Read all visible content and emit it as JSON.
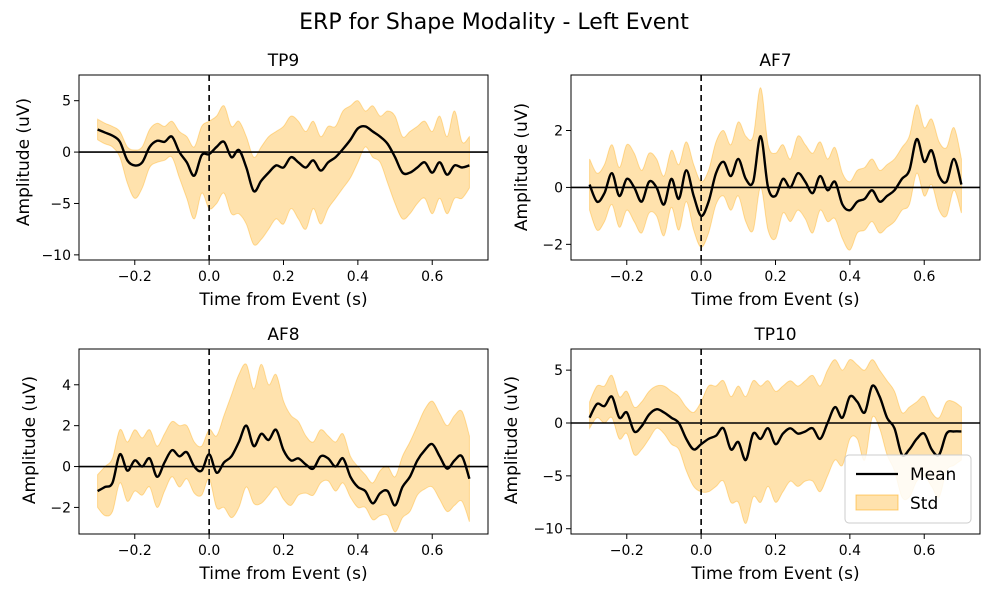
{
  "figure": {
    "title": "ERP for Shape Modality - Left Event",
    "colors": {
      "mean": "#000000",
      "std_fill": "#ffa500",
      "std_alpha": 0.32
    },
    "legend": {
      "placement": "lower-right",
      "panel": "TP10",
      "entries": [
        "Mean",
        "Std"
      ]
    }
  },
  "chart_data": [
    {
      "type": "line",
      "title": "TP9",
      "xlabel": "Time from Event (s)",
      "ylabel": "Amplitude (uV)",
      "xlim": [
        -0.35,
        0.75
      ],
      "ylim": [
        -10.5,
        7.5
      ],
      "xticks": [
        -0.2,
        0.0,
        0.2,
        0.4,
        0.6
      ],
      "xtick_labels": [
        "−0.2",
        "0.0",
        "0.2",
        "0.4",
        "0.6"
      ],
      "yticks": [
        -10,
        -5,
        0,
        5
      ],
      "ytick_labels": [
        "−10",
        "−5",
        "0",
        "5"
      ],
      "event_line_x": 0,
      "baseline_y": 0,
      "x": [
        -0.3,
        -0.28,
        -0.26,
        -0.24,
        -0.22,
        -0.2,
        -0.18,
        -0.16,
        -0.14,
        -0.12,
        -0.1,
        -0.08,
        -0.06,
        -0.04,
        -0.02,
        0.0,
        0.02,
        0.04,
        0.06,
        0.08,
        0.1,
        0.12,
        0.14,
        0.16,
        0.18,
        0.2,
        0.22,
        0.24,
        0.26,
        0.28,
        0.3,
        0.32,
        0.34,
        0.36,
        0.38,
        0.4,
        0.42,
        0.44,
        0.46,
        0.48,
        0.5,
        0.52,
        0.54,
        0.56,
        0.58,
        0.6,
        0.62,
        0.64,
        0.66,
        0.68,
        0.7
      ],
      "series": [
        {
          "name": "Mean",
          "values": [
            2.2,
            1.9,
            1.6,
            1.0,
            -0.8,
            -1.3,
            -1.0,
            0.5,
            1.1,
            1.0,
            1.5,
            0.0,
            -1.0,
            -2.3,
            -0.3,
            -0.2,
            0.5,
            1.0,
            -0.5,
            0.2,
            -1.5,
            -3.8,
            -2.8,
            -2.0,
            -1.3,
            -1.5,
            -0.5,
            -1.0,
            -1.5,
            -0.8,
            -1.8,
            -1.0,
            -0.5,
            0.3,
            1.2,
            2.3,
            2.5,
            2.0,
            1.5,
            0.8,
            -0.5,
            -2.0,
            -2.0,
            -1.5,
            -1.0,
            -2.0,
            -1.0,
            -2.2,
            -1.3,
            -1.5,
            -1.3
          ]
        },
        {
          "name": "Std",
          "upper": [
            3.2,
            2.8,
            2.5,
            2.0,
            0.5,
            0.2,
            0.5,
            2.2,
            2.8,
            2.5,
            3.0,
            2.0,
            1.5,
            0.5,
            2.5,
            3.0,
            3.5,
            4.5,
            2.5,
            3.0,
            1.5,
            -0.5,
            0.5,
            1.5,
            2.0,
            2.5,
            3.5,
            3.0,
            2.0,
            3.0,
            1.5,
            2.5,
            2.5,
            4.0,
            4.5,
            5.0,
            4.0,
            4.5,
            3.5,
            4.0,
            3.5,
            1.5,
            2.0,
            2.5,
            3.0,
            2.0,
            3.5,
            1.5,
            4.0,
            1.0,
            1.5
          ],
          "lower": [
            1.2,
            0.8,
            0.5,
            -0.5,
            -3.0,
            -4.5,
            -3.5,
            -1.5,
            -1.0,
            -0.8,
            -0.5,
            -2.5,
            -4.5,
            -6.5,
            -4.0,
            -5.5,
            -5.0,
            -4.0,
            -6.0,
            -6.0,
            -7.0,
            -9.0,
            -8.5,
            -7.5,
            -6.5,
            -7.0,
            -5.5,
            -6.5,
            -7.5,
            -5.5,
            -7.0,
            -5.5,
            -4.5,
            -3.5,
            -2.5,
            -1.0,
            0.5,
            -0.5,
            -1.0,
            -3.0,
            -5.0,
            -6.5,
            -6.0,
            -5.0,
            -4.5,
            -6.0,
            -4.5,
            -6.0,
            -4.5,
            -4.5,
            -3.5
          ]
        }
      ]
    },
    {
      "type": "line",
      "title": "AF7",
      "xlabel": "Time from Event (s)",
      "ylabel": "Amplitude (uV)",
      "xlim": [
        -0.35,
        0.75
      ],
      "ylim": [
        -2.55,
        3.95
      ],
      "xticks": [
        -0.2,
        0.0,
        0.2,
        0.4,
        0.6
      ],
      "xtick_labels": [
        "−0.2",
        "0.0",
        "0.2",
        "0.4",
        "0.6"
      ],
      "yticks": [
        -2,
        0,
        2
      ],
      "ytick_labels": [
        "−2",
        "0",
        "2"
      ],
      "event_line_x": 0,
      "baseline_y": 0,
      "x": [
        -0.3,
        -0.28,
        -0.26,
        -0.24,
        -0.22,
        -0.2,
        -0.18,
        -0.16,
        -0.14,
        -0.12,
        -0.1,
        -0.08,
        -0.06,
        -0.04,
        -0.02,
        0.0,
        0.02,
        0.04,
        0.06,
        0.08,
        0.1,
        0.12,
        0.14,
        0.16,
        0.18,
        0.2,
        0.22,
        0.24,
        0.26,
        0.28,
        0.3,
        0.32,
        0.34,
        0.36,
        0.38,
        0.4,
        0.42,
        0.44,
        0.46,
        0.48,
        0.5,
        0.52,
        0.54,
        0.56,
        0.58,
        0.6,
        0.62,
        0.64,
        0.66,
        0.68,
        0.7
      ],
      "series": [
        {
          "name": "Mean",
          "values": [
            0.1,
            -0.5,
            -0.2,
            0.5,
            -0.3,
            0.3,
            0.0,
            -0.5,
            0.2,
            0.0,
            -0.6,
            0.3,
            -0.4,
            0.6,
            -0.3,
            -1.0,
            -0.5,
            0.5,
            0.9,
            0.4,
            1.0,
            0.3,
            0.2,
            1.8,
            0.0,
            -0.3,
            0.3,
            0.0,
            0.5,
            0.2,
            -0.2,
            0.4,
            -0.1,
            0.2,
            -0.6,
            -0.8,
            -0.5,
            -0.4,
            -0.1,
            -0.5,
            -0.3,
            -0.1,
            0.3,
            0.6,
            1.7,
            0.9,
            1.3,
            0.4,
            0.2,
            1.0,
            0.1
          ]
        },
        {
          "name": "Std",
          "upper": [
            1.0,
            0.5,
            0.8,
            1.5,
            0.7,
            1.5,
            1.2,
            0.6,
            1.2,
            1.0,
            0.4,
            1.3,
            0.8,
            1.6,
            0.8,
            0.2,
            0.6,
            1.6,
            2.0,
            1.5,
            2.3,
            1.8,
            1.8,
            3.5,
            1.5,
            1.2,
            1.5,
            1.0,
            1.8,
            1.5,
            1.2,
            1.6,
            1.0,
            1.4,
            0.5,
            0.2,
            0.6,
            0.7,
            1.0,
            0.6,
            0.8,
            1.0,
            1.4,
            1.8,
            2.9,
            2.1,
            2.4,
            1.6,
            1.4,
            2.1,
            1.0
          ],
          "lower": [
            -0.8,
            -1.5,
            -1.2,
            -0.6,
            -1.4,
            -0.8,
            -1.2,
            -1.6,
            -0.9,
            -1.0,
            -1.7,
            -0.7,
            -1.5,
            -0.5,
            -1.5,
            -2.1,
            -1.6,
            -0.6,
            -0.3,
            -0.8,
            -0.3,
            -1.2,
            -1.5,
            0.0,
            -1.5,
            -1.8,
            -0.9,
            -1.2,
            -0.8,
            -1.1,
            -1.6,
            -0.8,
            -1.2,
            -1.1,
            -1.8,
            -2.2,
            -1.6,
            -1.5,
            -1.2,
            -1.6,
            -1.4,
            -1.2,
            -0.8,
            -0.6,
            0.5,
            -0.3,
            0.1,
            -0.8,
            -1.0,
            -0.1,
            -0.9
          ]
        }
      ]
    },
    {
      "type": "line",
      "title": "AF8",
      "xlabel": "Time from Event (s)",
      "ylabel": "Amplitude (uV)",
      "xlim": [
        -0.35,
        0.75
      ],
      "ylim": [
        -3.3,
        5.75
      ],
      "xticks": [
        -0.2,
        0.0,
        0.2,
        0.4,
        0.6
      ],
      "xtick_labels": [
        "−0.2",
        "0.0",
        "0.2",
        "0.4",
        "0.6"
      ],
      "yticks": [
        -2,
        0,
        2,
        4
      ],
      "ytick_labels": [
        "−2",
        "0",
        "2",
        "4"
      ],
      "event_line_x": 0,
      "baseline_y": 0,
      "x": [
        -0.3,
        -0.28,
        -0.26,
        -0.24,
        -0.22,
        -0.2,
        -0.18,
        -0.16,
        -0.14,
        -0.12,
        -0.1,
        -0.08,
        -0.06,
        -0.04,
        -0.02,
        0.0,
        0.02,
        0.04,
        0.06,
        0.08,
        0.1,
        0.12,
        0.14,
        0.16,
        0.18,
        0.2,
        0.22,
        0.24,
        0.26,
        0.28,
        0.3,
        0.32,
        0.34,
        0.36,
        0.38,
        0.4,
        0.42,
        0.44,
        0.46,
        0.48,
        0.5,
        0.52,
        0.54,
        0.56,
        0.58,
        0.6,
        0.62,
        0.64,
        0.66,
        0.68,
        0.7
      ],
      "series": [
        {
          "name": "Mean",
          "values": [
            -1.2,
            -1.0,
            -0.8,
            0.6,
            -0.2,
            0.3,
            0.0,
            0.4,
            -0.5,
            0.2,
            0.8,
            0.5,
            0.7,
            0.0,
            -0.2,
            0.6,
            -0.3,
            0.2,
            0.5,
            1.2,
            2.0,
            1.0,
            1.6,
            1.3,
            1.8,
            0.8,
            0.3,
            0.4,
            0.1,
            -0.1,
            0.5,
            0.4,
            0.0,
            0.4,
            -0.5,
            -1.0,
            -1.2,
            -1.8,
            -1.3,
            -1.2,
            -1.9,
            -1.0,
            -0.5,
            0.3,
            0.8,
            1.1,
            0.5,
            -0.1,
            0.3,
            0.5,
            -0.6
          ]
        },
        {
          "name": "Std",
          "upper": [
            -0.4,
            0.0,
            0.4,
            1.8,
            1.2,
            1.8,
            1.4,
            1.8,
            1.0,
            1.6,
            2.2,
            2.0,
            2.0,
            1.2,
            1.0,
            1.8,
            1.5,
            2.5,
            3.5,
            4.5,
            5.0,
            3.8,
            5.0,
            4.0,
            4.5,
            3.2,
            2.5,
            2.2,
            1.5,
            1.2,
            1.8,
            1.5,
            1.2,
            1.6,
            0.5,
            0.0,
            -0.4,
            -0.8,
            -0.2,
            0.0,
            -0.5,
            0.5,
            1.2,
            2.0,
            2.8,
            3.2,
            2.6,
            2.0,
            2.5,
            2.7,
            1.5
          ],
          "lower": [
            -2.0,
            -2.4,
            -2.2,
            -0.8,
            -1.7,
            -1.2,
            -1.4,
            -1.0,
            -2.0,
            -1.2,
            -0.5,
            -1.0,
            -0.6,
            -1.3,
            -1.4,
            -0.6,
            -2.0,
            -2.0,
            -2.5,
            -2.0,
            -1.0,
            -1.8,
            -1.8,
            -1.4,
            -1.0,
            -1.6,
            -1.9,
            -1.4,
            -1.3,
            -1.4,
            -0.8,
            -0.7,
            -1.2,
            -0.8,
            -1.5,
            -2.0,
            -2.0,
            -2.6,
            -2.4,
            -2.4,
            -3.2,
            -2.5,
            -2.2,
            -1.4,
            -1.1,
            -1.0,
            -1.6,
            -2.2,
            -1.9,
            -1.7,
            -2.7
          ]
        }
      ]
    },
    {
      "type": "line",
      "title": "TP10",
      "xlabel": "Time from Event (s)",
      "ylabel": "Amplitude (uV)",
      "xlim": [
        -0.35,
        0.75
      ],
      "ylim": [
        -10.5,
        7.0
      ],
      "xticks": [
        -0.2,
        0.0,
        0.2,
        0.4,
        0.6
      ],
      "xtick_labels": [
        "−0.2",
        "0.0",
        "0.2",
        "0.4",
        "0.6"
      ],
      "yticks": [
        -10,
        -5,
        0,
        5
      ],
      "ytick_labels": [
        "−10",
        "−5",
        "0",
        "5"
      ],
      "event_line_x": 0,
      "baseline_y": 0,
      "x": [
        -0.3,
        -0.28,
        -0.26,
        -0.24,
        -0.22,
        -0.2,
        -0.18,
        -0.16,
        -0.14,
        -0.12,
        -0.1,
        -0.08,
        -0.06,
        -0.04,
        -0.02,
        0.0,
        0.02,
        0.04,
        0.06,
        0.08,
        0.1,
        0.12,
        0.14,
        0.16,
        0.18,
        0.2,
        0.22,
        0.24,
        0.26,
        0.28,
        0.3,
        0.32,
        0.34,
        0.36,
        0.38,
        0.4,
        0.42,
        0.44,
        0.46,
        0.48,
        0.5,
        0.52,
        0.54,
        0.56,
        0.58,
        0.6,
        0.62,
        0.64,
        0.66,
        0.68,
        0.7
      ],
      "series": [
        {
          "name": "Mean",
          "values": [
            0.5,
            1.8,
            1.6,
            2.5,
            0.5,
            1.0,
            -0.8,
            -0.3,
            0.8,
            1.3,
            1.0,
            0.5,
            0.0,
            -1.5,
            -2.5,
            -2.0,
            -1.5,
            -1.2,
            -0.5,
            -2.5,
            -1.8,
            -3.5,
            -1.0,
            -1.5,
            -0.5,
            -2.0,
            -1.0,
            -0.5,
            -1.0,
            -0.8,
            -0.5,
            -1.5,
            0.0,
            1.5,
            0.5,
            2.5,
            2.0,
            1.0,
            3.5,
            2.5,
            0.5,
            -0.5,
            -3.0,
            -2.5,
            -1.5,
            -1.0,
            -2.5,
            -3.0,
            -1.0,
            -0.8,
            -0.8
          ]
        },
        {
          "name": "Std",
          "upper": [
            2.0,
            3.5,
            3.5,
            4.5,
            2.5,
            3.0,
            1.5,
            2.0,
            3.0,
            3.5,
            3.5,
            3.0,
            2.5,
            1.5,
            1.0,
            2.0,
            3.5,
            3.5,
            4.0,
            2.5,
            3.5,
            2.5,
            4.0,
            3.5,
            4.0,
            3.0,
            3.5,
            4.0,
            3.5,
            4.0,
            4.5,
            3.5,
            5.0,
            6.0,
            5.0,
            6.0,
            5.5,
            5.0,
            6.0,
            5.0,
            4.0,
            3.0,
            1.0,
            1.5,
            2.0,
            2.5,
            1.0,
            0.5,
            2.0,
            2.0,
            1.5
          ],
          "lower": [
            -0.5,
            0.5,
            0.0,
            0.5,
            -1.5,
            -1.0,
            -3.0,
            -2.5,
            -1.5,
            -0.5,
            -1.0,
            -2.0,
            -2.5,
            -4.5,
            -6.0,
            -6.5,
            -6.5,
            -6.0,
            -5.5,
            -7.5,
            -7.5,
            -9.5,
            -7.0,
            -7.5,
            -6.0,
            -7.5,
            -6.5,
            -5.5,
            -6.0,
            -5.5,
            -5.5,
            -6.5,
            -5.0,
            -3.5,
            -4.0,
            -1.5,
            -1.5,
            -3.5,
            0.5,
            -0.5,
            -3.0,
            -4.5,
            -7.0,
            -7.0,
            -5.5,
            -5.0,
            -6.0,
            -7.0,
            -4.5,
            -4.0,
            -3.5
          ]
        }
      ]
    }
  ]
}
